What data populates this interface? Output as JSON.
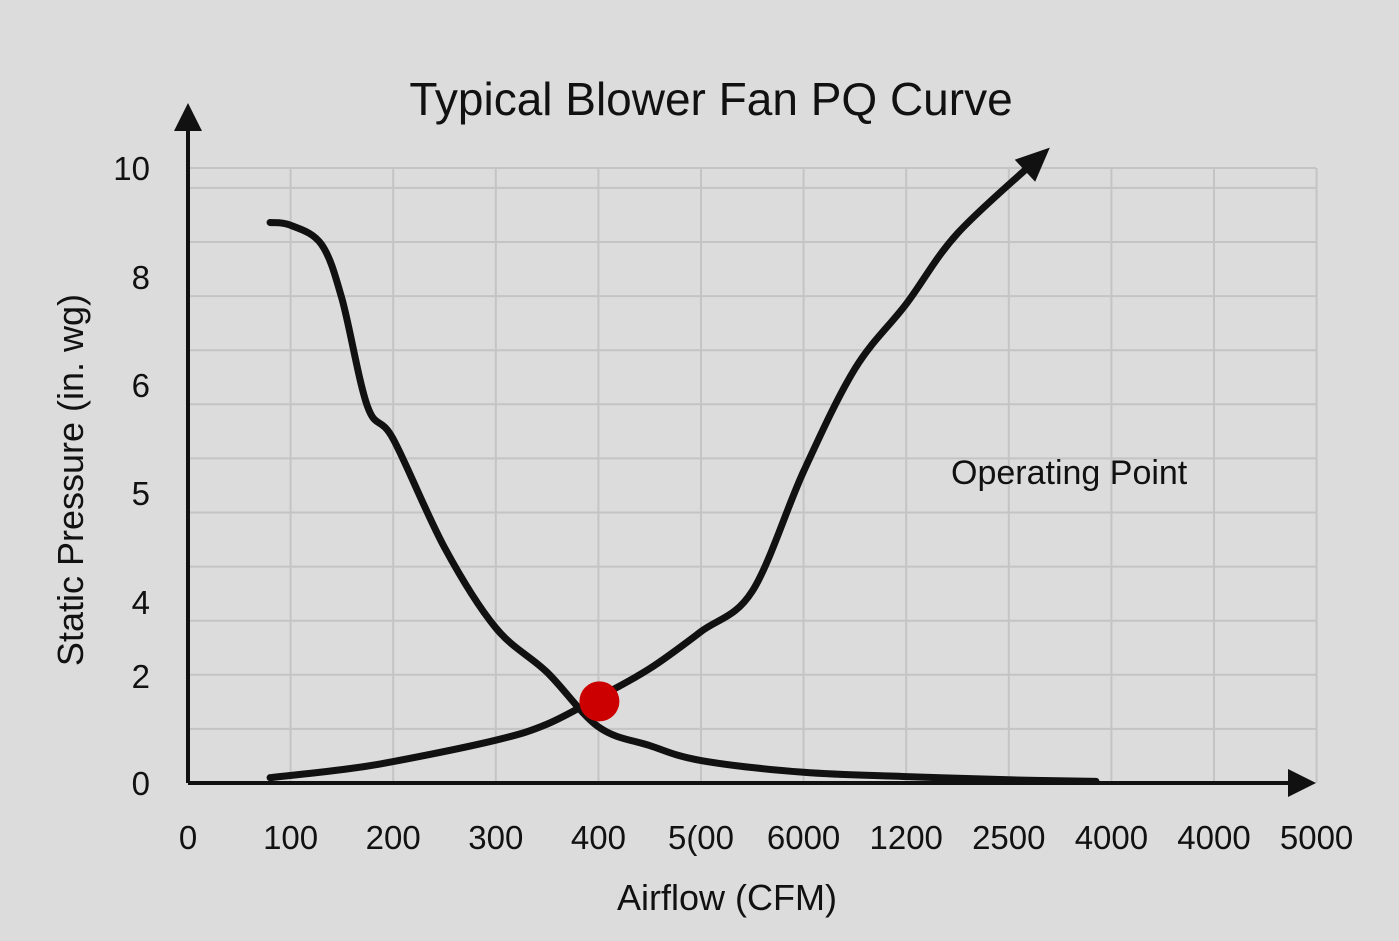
{
  "chart_data": {
    "type": "line",
    "title": "Typical Blower Fan PQ Curve",
    "xlabel": "Airflow (CFM)",
    "ylabel": "Static Pressure (in. wg)",
    "x_ticks": [
      "0",
      "100",
      "200",
      "300",
      "400",
      "5(00",
      "6000",
      "1200",
      "2500",
      "4000",
      "4000",
      "5000"
    ],
    "y_ticks": [
      "0",
      "2",
      "4",
      "5",
      "6",
      "8",
      "10"
    ],
    "x_range_ticks": [
      0,
      11
    ],
    "y_range": [
      0,
      11.4
    ],
    "grid": true,
    "series": [
      {
        "points": [
          [
            0.8,
            9.0
          ],
          [
            1.0,
            8.95
          ],
          [
            1.3,
            8.6
          ],
          [
            1.5,
            7.6
          ],
          [
            1.75,
            5.8
          ],
          [
            2.0,
            5.5
          ],
          [
            2.5,
            4.5
          ],
          [
            3.0,
            3.3
          ],
          [
            3.5,
            2.1
          ],
          [
            4.0,
            1.05
          ],
          [
            4.5,
            0.7
          ],
          [
            5.0,
            0.42
          ],
          [
            6.0,
            0.2
          ],
          [
            7.0,
            0.12
          ],
          [
            8.0,
            0.06
          ],
          [
            8.85,
            0.03
          ]
        ]
      },
      {
        "points": [
          [
            0.8,
            0.1
          ],
          [
            1.5,
            0.25
          ],
          [
            2.0,
            0.4
          ],
          [
            3.0,
            0.8
          ],
          [
            3.5,
            1.1
          ],
          [
            4.0,
            1.6
          ],
          [
            4.5,
            2.2
          ],
          [
            5.0,
            3.2
          ],
          [
            5.5,
            4.1
          ],
          [
            6.0,
            5.2
          ],
          [
            6.5,
            6.3
          ],
          [
            7.0,
            7.5
          ],
          [
            7.5,
            8.8
          ],
          [
            8.3,
            10.2
          ]
        ]
      }
    ],
    "markers": [
      {
        "x": 4.0,
        "y": 1.6,
        "color": "#cc0000"
      }
    ],
    "annotations": [
      {
        "text": "Operating Point"
      }
    ],
    "colors": {
      "line": "#111111",
      "grid": "#c4c4c4",
      "marker": "#cc0000",
      "background": "#dcdcdc"
    }
  }
}
